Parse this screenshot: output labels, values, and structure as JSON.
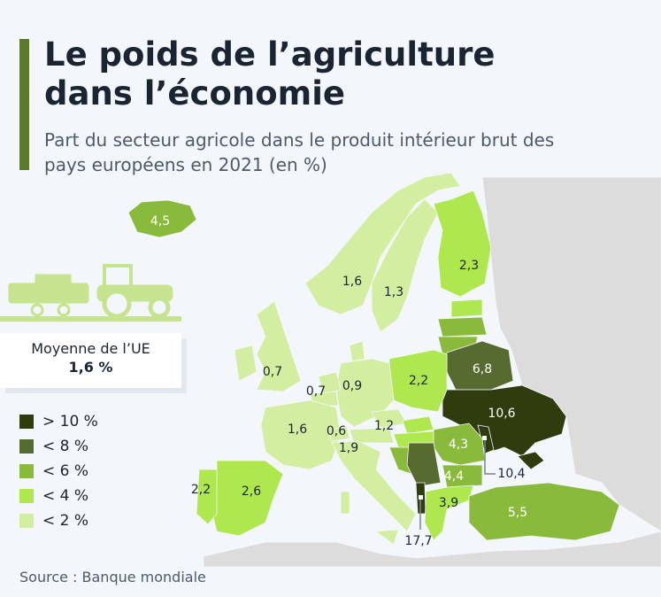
{
  "title": "Le poids de l’agriculture dans l’économie",
  "subtitle": "Part du secteur agricole dans le produit intérieur brut des pays européens en 2021 (en %)",
  "eu_average": {
    "label": "Moyenne de l’UE",
    "value": "1,6 %"
  },
  "legend": [
    {
      "label": "> 10 %",
      "color": "#2f3d0e"
    },
    {
      "label": "< 8 %",
      "color": "#576b30"
    },
    {
      "label": "< 6 %",
      "color": "#8aba3c"
    },
    {
      "label": "< 4 %",
      "color": "#aee74e"
    },
    {
      "label": "< 2 %",
      "color": "#d3eea0"
    }
  ],
  "colors": {
    "accent": "#5b7a2d",
    "no_data": "#dcdcdc",
    "background": "#f3f6fa"
  },
  "icons": [
    "tractor-icon"
  ],
  "countries": {
    "iceland": "4,5",
    "norway": "1,6",
    "sweden": "1,3",
    "finland": "2,3",
    "uk": "0,7",
    "benelux": "0,7",
    "germany": "0,9",
    "poland": "2,2",
    "belarus": "6,8",
    "ukraine": "10,6",
    "moldova": "10,4",
    "france": "1,6",
    "switzerland": "0,6",
    "italy": "1,9",
    "czechia": "1,2",
    "romania": "4,3",
    "bulgaria": "4,4",
    "albania": "17,7",
    "greece": "3,9",
    "turkey": "5,5",
    "spain": "2,6",
    "portugal": "2,2"
  },
  "source": "Source : Banque mondiale"
}
